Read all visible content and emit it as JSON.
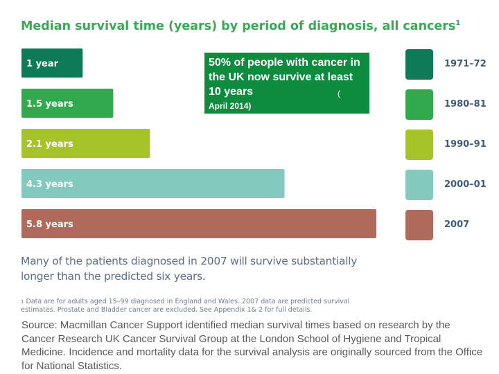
{
  "title": "Median survival time (years) by period of diagnosis, all cancers",
  "title_footnote_marker": "1",
  "callout": {
    "main": "50% of people with cancer in the UK now survive  at least 10 years",
    "paren": "(",
    "date": "April 2014)"
  },
  "note": "Many of the patients diagnosed in 2007 will survive substantially longer than the predicted six years.",
  "footnote": {
    "marker": "1",
    "text": "Data are for adults aged 15–99 diagnosed in England and Wales. 2007 data are predicted survival estimates. Prostate and Bladder cancer are excluded. See Appendix 1& 2 for full details."
  },
  "source": "Source: Macmillan Cancer Support identified median survival times based on research by the Cancer Research UK Cancer Survival Group at the London School of Hygiene and Tropical Medicine. Incidence and mortality data for the survival analysis are originally sourced from the Office for National Statistics.",
  "chart_data": {
    "type": "bar",
    "orientation": "horizontal",
    "title": "Median survival time (years) by period of diagnosis, all cancers",
    "categories": [
      "1971–72",
      "1980–81",
      "1990–91",
      "2000–01",
      "2007"
    ],
    "values": [
      1,
      1.5,
      2.1,
      4.3,
      5.8
    ],
    "value_labels": [
      "1 year",
      "1.5 years",
      "2.1 years",
      "4.3 years",
      "5.8 years"
    ],
    "colors": [
      "#0e7a57",
      "#32a84f",
      "#a6c42a",
      "#84c9bd",
      "#b06a5c"
    ],
    "xlim": [
      0,
      5.8
    ],
    "legend": "right",
    "grid": false
  }
}
